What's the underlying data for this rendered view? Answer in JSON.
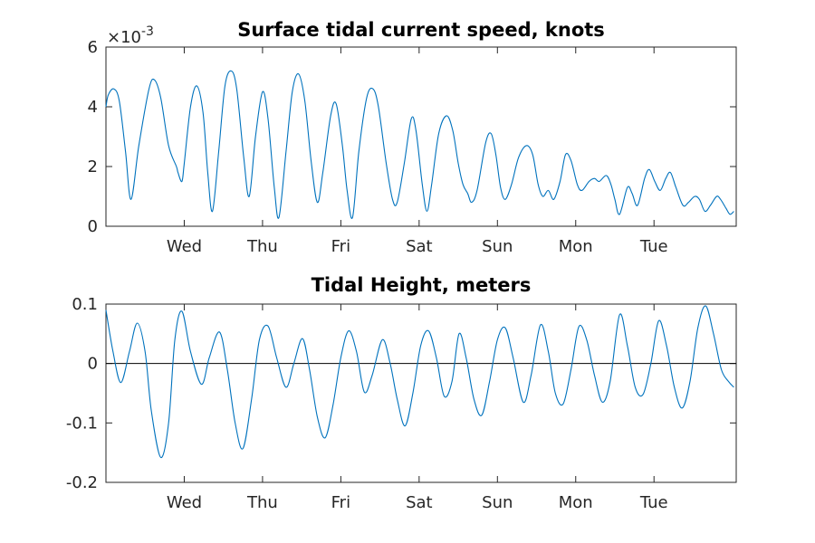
{
  "chart_data": [
    {
      "type": "line",
      "title": "Surface tidal current speed, knots",
      "xlabel": "",
      "ylabel": "",
      "exponent_base": "×10",
      "exponent_power": "-3",
      "ylim": [
        0,
        0.006
      ],
      "yticks": [
        0,
        0.002,
        0.004,
        0.006
      ],
      "ytick_labels": [
        "0",
        "2",
        "4",
        "6"
      ],
      "xlim": [
        0,
        8.05
      ],
      "xticks": [
        1,
        2,
        3,
        4,
        5,
        6,
        7
      ],
      "xtick_labels": [
        "Wed",
        "Thu",
        "Fri",
        "Sat",
        "Sun",
        "Mon",
        "Tue"
      ],
      "series": [
        {
          "color": "#0072bd",
          "points": [
            [
              0.0,
              0.004
            ],
            [
              0.03,
              0.0044
            ],
            [
              0.1,
              0.0046
            ],
            [
              0.17,
              0.0042
            ],
            [
              0.25,
              0.0025
            ],
            [
              0.32,
              0.0009
            ],
            [
              0.42,
              0.0027
            ],
            [
              0.55,
              0.0046
            ],
            [
              0.62,
              0.0049
            ],
            [
              0.7,
              0.0043
            ],
            [
              0.8,
              0.0027
            ],
            [
              0.9,
              0.002
            ],
            [
              0.92,
              0.0018
            ],
            [
              0.97,
              0.0015
            ],
            [
              1.0,
              0.0021
            ],
            [
              1.08,
              0.004
            ],
            [
              1.16,
              0.0047
            ],
            [
              1.24,
              0.0038
            ],
            [
              1.3,
              0.0018
            ],
            [
              1.36,
              0.0005
            ],
            [
              1.44,
              0.0025
            ],
            [
              1.52,
              0.0047
            ],
            [
              1.6,
              0.0052
            ],
            [
              1.67,
              0.0046
            ],
            [
              1.76,
              0.0023
            ],
            [
              1.83,
              0.001
            ],
            [
              1.91,
              0.003
            ],
            [
              2.0,
              0.0045
            ],
            [
              2.07,
              0.0036
            ],
            [
              2.15,
              0.0013
            ],
            [
              2.21,
              0.0003
            ],
            [
              2.3,
              0.0025
            ],
            [
              2.38,
              0.0045
            ],
            [
              2.46,
              0.0051
            ],
            [
              2.54,
              0.0042
            ],
            [
              2.62,
              0.0022
            ],
            [
              2.7,
              0.0008
            ],
            [
              2.77,
              0.0018
            ],
            [
              2.87,
              0.0037
            ],
            [
              2.94,
              0.0041
            ],
            [
              3.02,
              0.0027
            ],
            [
              3.08,
              0.0012
            ],
            [
              3.15,
              0.0003
            ],
            [
              3.23,
              0.0025
            ],
            [
              3.33,
              0.0043
            ],
            [
              3.41,
              0.0046
            ],
            [
              3.48,
              0.004
            ],
            [
              3.58,
              0.0021
            ],
            [
              3.66,
              0.0009
            ],
            [
              3.72,
              0.0008
            ],
            [
              3.81,
              0.0021
            ],
            [
              3.9,
              0.0036
            ],
            [
              3.96,
              0.0032
            ],
            [
              4.04,
              0.0014
            ],
            [
              4.1,
              0.0005
            ],
            [
              4.16,
              0.0014
            ],
            [
              4.25,
              0.0031
            ],
            [
              4.35,
              0.0037
            ],
            [
              4.43,
              0.0032
            ],
            [
              4.5,
              0.0021
            ],
            [
              4.56,
              0.0014
            ],
            [
              4.62,
              0.0011
            ],
            [
              4.67,
              0.0008
            ],
            [
              4.74,
              0.0012
            ],
            [
              4.85,
              0.0028
            ],
            [
              4.92,
              0.0031
            ],
            [
              4.98,
              0.0024
            ],
            [
              5.04,
              0.0013
            ],
            [
              5.1,
              0.0009
            ],
            [
              5.18,
              0.0014
            ],
            [
              5.27,
              0.0023
            ],
            [
              5.37,
              0.0027
            ],
            [
              5.45,
              0.0024
            ],
            [
              5.52,
              0.0014
            ],
            [
              5.58,
              0.001
            ],
            [
              5.65,
              0.0012
            ],
            [
              5.72,
              0.0009
            ],
            [
              5.8,
              0.0015
            ],
            [
              5.87,
              0.0024
            ],
            [
              5.94,
              0.0022
            ],
            [
              6.02,
              0.0014
            ],
            [
              6.08,
              0.0012
            ],
            [
              6.17,
              0.0015
            ],
            [
              6.24,
              0.0016
            ],
            [
              6.3,
              0.0015
            ],
            [
              6.39,
              0.0017
            ],
            [
              6.45,
              0.0014
            ],
            [
              6.5,
              0.0009
            ],
            [
              6.56,
              0.0004
            ],
            [
              6.66,
              0.0013
            ],
            [
              6.72,
              0.0011
            ],
            [
              6.79,
              0.0007
            ],
            [
              6.88,
              0.0016
            ],
            [
              6.94,
              0.0019
            ],
            [
              7.01,
              0.0015
            ],
            [
              7.08,
              0.0012
            ],
            [
              7.15,
              0.0016
            ],
            [
              7.21,
              0.0018
            ],
            [
              7.28,
              0.0013
            ],
            [
              7.37,
              0.0007
            ],
            [
              7.44,
              0.0008
            ],
            [
              7.52,
              0.001
            ],
            [
              7.58,
              0.0009
            ],
            [
              7.65,
              0.0005
            ],
            [
              7.72,
              0.0007
            ],
            [
              7.8,
              0.001
            ],
            [
              7.85,
              0.0009
            ],
            [
              7.92,
              0.0006
            ],
            [
              7.97,
              0.0004
            ],
            [
              8.02,
              0.0005
            ]
          ]
        }
      ]
    },
    {
      "type": "line",
      "title": "Tidal Height, meters",
      "xlabel": "",
      "ylabel": "",
      "ylim": [
        -0.2,
        0.1
      ],
      "yticks": [
        -0.2,
        -0.1,
        0,
        0.1
      ],
      "ytick_labels": [
        "-0.2",
        "-0.1",
        "0",
        "0.1"
      ],
      "xlim": [
        0,
        8.05
      ],
      "xticks": [
        1,
        2,
        3,
        4,
        5,
        6,
        7
      ],
      "xtick_labels": [
        "Wed",
        "Thu",
        "Fri",
        "Sat",
        "Sun",
        "Mon",
        "Tue"
      ],
      "zero_line": true,
      "series": [
        {
          "color": "#0072bd",
          "points": [
            [
              0.0,
              0.09
            ],
            [
              0.09,
              0.02
            ],
            [
              0.19,
              -0.032
            ],
            [
              0.3,
              0.02
            ],
            [
              0.4,
              0.068
            ],
            [
              0.5,
              0.02
            ],
            [
              0.58,
              -0.08
            ],
            [
              0.7,
              -0.158
            ],
            [
              0.8,
              -0.1
            ],
            [
              0.88,
              0.04
            ],
            [
              0.97,
              0.088
            ],
            [
              1.08,
              0.02
            ],
            [
              1.22,
              -0.035
            ],
            [
              1.32,
              0.01
            ],
            [
              1.45,
              0.053
            ],
            [
              1.55,
              -0.01
            ],
            [
              1.65,
              -0.1
            ],
            [
              1.75,
              -0.143
            ],
            [
              1.86,
              -0.06
            ],
            [
              1.96,
              0.04
            ],
            [
              2.07,
              0.063
            ],
            [
              2.18,
              0.01
            ],
            [
              2.3,
              -0.04
            ],
            [
              2.4,
              0.0
            ],
            [
              2.51,
              0.042
            ],
            [
              2.6,
              -0.01
            ],
            [
              2.7,
              -0.09
            ],
            [
              2.8,
              -0.125
            ],
            [
              2.9,
              -0.07
            ],
            [
              3.0,
              0.01
            ],
            [
              3.1,
              0.055
            ],
            [
              3.2,
              0.02
            ],
            [
              3.3,
              -0.048
            ],
            [
              3.4,
              -0.02
            ],
            [
              3.53,
              0.04
            ],
            [
              3.63,
              0.0
            ],
            [
              3.72,
              -0.06
            ],
            [
              3.82,
              -0.105
            ],
            [
              3.92,
              -0.05
            ],
            [
              4.02,
              0.03
            ],
            [
              4.12,
              0.055
            ],
            [
              4.22,
              0.01
            ],
            [
              4.32,
              -0.055
            ],
            [
              4.42,
              -0.03
            ],
            [
              4.51,
              0.05
            ],
            [
              4.6,
              0.01
            ],
            [
              4.7,
              -0.06
            ],
            [
              4.8,
              -0.087
            ],
            [
              4.9,
              -0.03
            ],
            [
              5.0,
              0.04
            ],
            [
              5.1,
              0.06
            ],
            [
              5.2,
              0.01
            ],
            [
              5.33,
              -0.065
            ],
            [
              5.43,
              -0.02
            ],
            [
              5.55,
              0.065
            ],
            [
              5.65,
              0.02
            ],
            [
              5.74,
              -0.05
            ],
            [
              5.84,
              -0.068
            ],
            [
              5.94,
              -0.01
            ],
            [
              6.04,
              0.062
            ],
            [
              6.14,
              0.04
            ],
            [
              6.24,
              -0.02
            ],
            [
              6.34,
              -0.065
            ],
            [
              6.44,
              -0.03
            ],
            [
              6.56,
              0.082
            ],
            [
              6.66,
              0.03
            ],
            [
              6.76,
              -0.04
            ],
            [
              6.86,
              -0.052
            ],
            [
              6.96,
              0.0
            ],
            [
              7.06,
              0.072
            ],
            [
              7.16,
              0.03
            ],
            [
              7.26,
              -0.04
            ],
            [
              7.36,
              -0.075
            ],
            [
              7.46,
              -0.03
            ],
            [
              7.56,
              0.06
            ],
            [
              7.66,
              0.097
            ],
            [
              7.76,
              0.05
            ],
            [
              7.86,
              -0.01
            ],
            [
              7.95,
              -0.03
            ],
            [
              8.02,
              -0.04
            ]
          ]
        }
      ]
    }
  ]
}
